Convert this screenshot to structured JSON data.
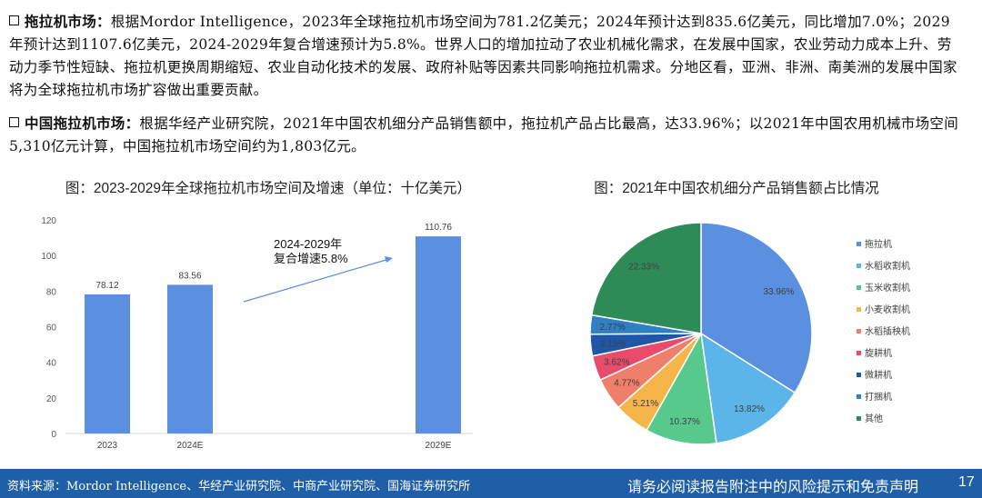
{
  "paragraphs": [
    {
      "heading": "拖拉机市场：",
      "text": "根据Mordor Intelligence，2023年全球拖拉机市场空间为781.2亿美元；2024年预计达到835.6亿美元，同比增加7.0%；2029年预计达到1107.6亿美元，2024-2029年复合增速预计为5.8%。世界人口的增加拉动了农业机械化需求，在发展中国家，农业劳动力成本上升、劳动力季节性短缺、拖拉机更换周期缩短、农业自动化技术的发展、政府补贴等因素共同影响拖拉机需求。分地区看，亚洲、非洲、南美洲的发展中国家将为全球拖拉机市场扩容做出重要贡献。"
    },
    {
      "heading": "中国拖拉机市场：",
      "text": "根据华经产业研究院，2021年中国农机细分产品销售额中，拖拉机产品占比最高，达33.96%；以2021年中国农用机械市场空间5,310亿元计算，中国拖拉机市场空间约为1,803亿元。"
    }
  ],
  "chart_data": [
    {
      "type": "bar",
      "title": "图：2023-2029年全球拖拉机市场空间及增速（单位：十亿美元）",
      "categories": [
        "2023",
        "2024E",
        "2029E"
      ],
      "values": [
        78.12,
        83.56,
        110.76
      ],
      "data_labels": [
        "78.12",
        "83.56",
        "110.76"
      ],
      "ylim": [
        0,
        120
      ],
      "yticks": [
        "0",
        "20",
        "40",
        "60",
        "80",
        "100",
        "120"
      ],
      "annotation": [
        "2024-2029年",
        "复合增速5.8%"
      ],
      "color": "#5b8fe0",
      "grid": false
    },
    {
      "type": "pie",
      "title": "图：2021年中国农机细分产品销售额占比情况",
      "legend_position": "right",
      "slices": [
        {
          "label": "拖拉机",
          "value": 33.96,
          "text": "33.96%",
          "color": "#5b8fe0"
        },
        {
          "label": "水稻收割机",
          "value": 13.82,
          "text": "13.82%",
          "color": "#5bb5e8"
        },
        {
          "label": "玉米收割机",
          "value": 10.37,
          "text": "10.37%",
          "color": "#58c98c"
        },
        {
          "label": "小麦收割机",
          "value": 5.21,
          "text": "5.21%",
          "color": "#f5b548"
        },
        {
          "label": "水稻插秧机",
          "value": 4.77,
          "text": "4.77%",
          "color": "#ef7f6a"
        },
        {
          "label": "旋耕机",
          "value": 3.62,
          "text": "3.62%",
          "color": "#e94b6c"
        },
        {
          "label": "微耕机",
          "value": 3.15,
          "text": "3.15%",
          "color": "#1f56a8"
        },
        {
          "label": "打捆机",
          "value": 2.77,
          "text": "2.77%",
          "color": "#2f7fc5"
        },
        {
          "label": "其他",
          "value": 22.33,
          "text": "22.33%",
          "color": "#2e8b57"
        }
      ]
    }
  ],
  "footer": {
    "source": "资料来源：Mordor Intelligence、华经产业研究院、中商产业研究院、国海证券研究所",
    "disclaimer": "请务必阅读报告附注中的风险提示和免责声明",
    "page_number": "17"
  }
}
